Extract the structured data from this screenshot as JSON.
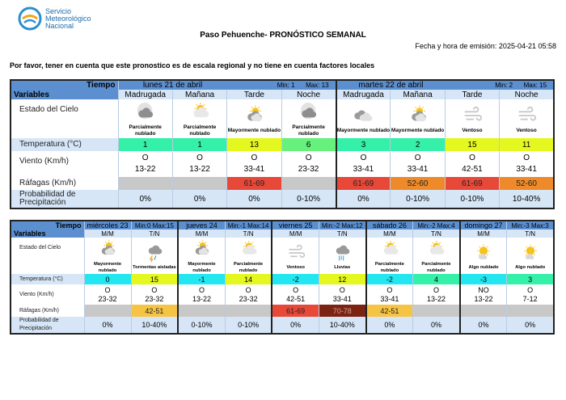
{
  "logo": {
    "line1": "Servicio",
    "line2": "Meteorológico",
    "line3": "Nacional"
  },
  "title": "Paso Pehuenche- PRONÓSTICO SEMANAL",
  "emission": "Fecha y hora de emisión: 2025-04-21 05:58",
  "note": "Por favor, tener en cuenta que este pronostico es de escala regional y no tiene en cuenta factores locales",
  "labels": {
    "tiempo": "Tiempo",
    "variables": "Variables",
    "cielo": "Estado del Cielo",
    "temp": "Temperatura (°C)",
    "viento": "Viento (Km/h)",
    "rafagas": "Ráfagas (Km/h)",
    "prob": "Probabilidad de Precipitación"
  },
  "colors": {
    "header": "#5b8fd0",
    "subheader": "#d6e6f7",
    "temp_cyan": "#22e6f0",
    "temp_teal": "#34f0a8",
    "temp_green": "#66f07c",
    "temp_yellow": "#e4f71e",
    "gust_gray": "#c8c8c8",
    "gust_yellow": "#f6c445",
    "gust_orange": "#ee8a2a",
    "gust_red": "#e84838",
    "gust_darkred": "#7b2414"
  },
  "table1": {
    "days": [
      {
        "name": "lunes 21 de abril",
        "min": "Min: 1",
        "max": "Max: 13"
      },
      {
        "name": "martes 22 de abril",
        "min": "Min: 2",
        "max": "Max: 15"
      }
    ],
    "periods": [
      {
        "label": "Madrugada",
        "icon": "night-cloud-icon",
        "sky": "Parcialmente nublado",
        "temp": "1",
        "temp_color": "teal",
        "dir": "O",
        "speed": "13-22",
        "gust": "",
        "gust_color": "gray",
        "prob": "0%"
      },
      {
        "label": "Mañana",
        "icon": "sun-cloud-icon",
        "sky": "Parcialmente nublado",
        "temp": "1",
        "temp_color": "teal",
        "dir": "O",
        "speed": "13-22",
        "gust": "",
        "gust_color": "gray",
        "prob": "0%"
      },
      {
        "label": "Tarde",
        "icon": "sun-dark-cloud-icon",
        "sky": "Mayormente nublado",
        "temp": "13",
        "temp_color": "yellow",
        "dir": "O",
        "speed": "33-41",
        "gust": "61-69",
        "gust_color": "red",
        "prob": "0%"
      },
      {
        "label": "Noche",
        "icon": "night-cloud-icon",
        "sky": "Parcialmente nublado",
        "temp": "6",
        "temp_color": "green",
        "dir": "O",
        "speed": "23-32",
        "gust": "",
        "gust_color": "gray",
        "prob": "0-10%"
      },
      {
        "label": "Madrugada",
        "icon": "clouds-icon",
        "sky": "Mayormente nublado",
        "temp": "3",
        "temp_color": "teal",
        "dir": "O",
        "speed": "33-41",
        "gust": "61-69",
        "gust_color": "red",
        "prob": "0%"
      },
      {
        "label": "Mañana",
        "icon": "sun-dark-cloud-icon",
        "sky": "Mayormente nublado",
        "temp": "2",
        "temp_color": "teal",
        "dir": "O",
        "speed": "33-41",
        "gust": "52-60",
        "gust_color": "orange",
        "prob": "0-10%"
      },
      {
        "label": "Tarde",
        "icon": "wind-icon",
        "sky": "Ventoso",
        "temp": "15",
        "temp_color": "yellow",
        "dir": "O",
        "speed": "42-51",
        "gust": "61-69",
        "gust_color": "red",
        "prob": "0-10%"
      },
      {
        "label": "Noche",
        "icon": "wind-icon",
        "sky": "Ventoso",
        "temp": "11",
        "temp_color": "yellow",
        "dir": "O",
        "speed": "33-41",
        "gust": "52-60",
        "gust_color": "orange",
        "prob": "10-40%"
      }
    ]
  },
  "table2": {
    "days": [
      {
        "name": "miércoles 23",
        "minmax": "Min:0  Max:15"
      },
      {
        "name": "jueves 24",
        "minmax": "Min:-1 Max:14"
      },
      {
        "name": "viernes 25",
        "minmax": "Min:-2 Max:12"
      },
      {
        "name": "sábado 26",
        "minmax": "Min:-2 Max:4"
      },
      {
        "name": "domingo 27",
        "minmax": "Min:-3 Max:3"
      }
    ],
    "periods": [
      {
        "label": "M/M",
        "icon": "sun-dark-cloud-icon",
        "sky": "Mayormente nublado",
        "temp": "0",
        "temp_color": "cyan",
        "dir": "O",
        "speed": "23-32",
        "gust": "",
        "gust_color": "gray",
        "prob": "0%"
      },
      {
        "label": "T/N",
        "icon": "storm-icon",
        "sky": "Tormentas aisladas",
        "temp": "15",
        "temp_color": "yellow",
        "dir": "O",
        "speed": "23-32",
        "gust": "42-51",
        "gust_color": "yellow",
        "prob": "10-40%"
      },
      {
        "label": "M/M",
        "icon": "sun-dark-cloud-icon",
        "sky": "Mayormente nublado",
        "temp": "-1",
        "temp_color": "cyan",
        "dir": "O",
        "speed": "13-22",
        "gust": "",
        "gust_color": "gray",
        "prob": "0-10%"
      },
      {
        "label": "T/N",
        "icon": "sun-cloud-icon",
        "sky": "Parcialmente nublado",
        "temp": "14",
        "temp_color": "yellow",
        "dir": "O",
        "speed": "23-32",
        "gust": "",
        "gust_color": "gray",
        "prob": "0-10%"
      },
      {
        "label": "M/M",
        "icon": "wind-icon",
        "sky": "Ventoso",
        "temp": "-2",
        "temp_color": "cyan",
        "dir": "O",
        "speed": "42-51",
        "gust": "61-69",
        "gust_color": "red",
        "prob": "0%"
      },
      {
        "label": "T/N",
        "icon": "rain-icon",
        "sky": "Lluvias",
        "temp": "12",
        "temp_color": "yellow",
        "dir": "O",
        "speed": "33-41",
        "gust": "70-78",
        "gust_color": "darkred",
        "prob": "10-40%"
      },
      {
        "label": "M/M",
        "icon": "sun-cloud-icon",
        "sky": "Parcialmente nublado",
        "temp": "-2",
        "temp_color": "cyan",
        "dir": "O",
        "speed": "33-41",
        "gust": "42-51",
        "gust_color": "yellow",
        "prob": "0%"
      },
      {
        "label": "T/N",
        "icon": "sun-cloud-icon",
        "sky": "Parcialmente nublado",
        "temp": "4",
        "temp_color": "teal",
        "dir": "O",
        "speed": "13-22",
        "gust": "",
        "gust_color": "gray",
        "prob": "0%"
      },
      {
        "label": "M/M",
        "icon": "sun-small-cloud-icon",
        "sky": "Algo nublado",
        "temp": "-3",
        "temp_color": "cyan",
        "dir": "NO",
        "speed": "13-22",
        "gust": "",
        "gust_color": "gray",
        "prob": "0%"
      },
      {
        "label": "T/N",
        "icon": "sun-small-cloud-icon",
        "sky": "Algo nublado",
        "temp": "3",
        "temp_color": "teal",
        "dir": "O",
        "speed": "7-12",
        "gust": "",
        "gust_color": "gray",
        "prob": "0%"
      }
    ]
  }
}
